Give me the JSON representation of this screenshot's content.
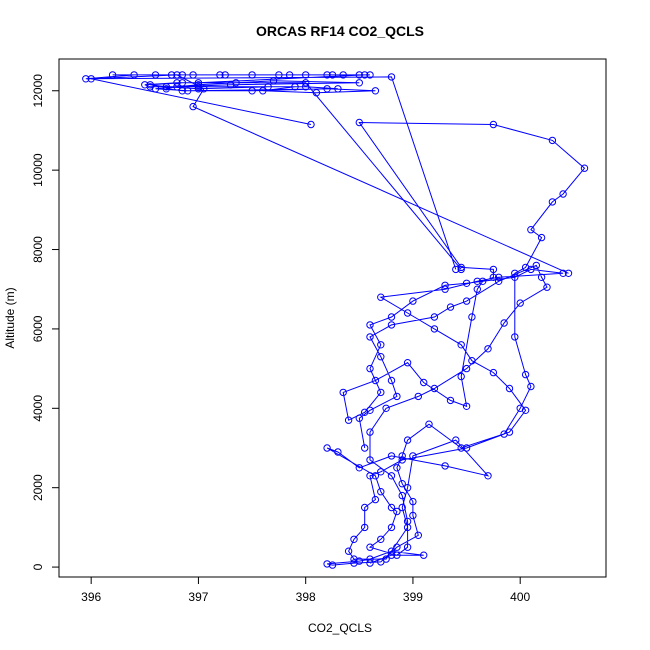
{
  "chart_data": {
    "type": "line",
    "title": "ORCAS RF14 CO2_QCLS",
    "xlabel": "CO2_QCLS",
    "ylabel": "Altitude (m)",
    "xlim": [
      395.7,
      400.8
    ],
    "ylim": [
      -250,
      12800
    ],
    "xticks": [
      396,
      397,
      398,
      399,
      400
    ],
    "yticks": [
      0,
      2000,
      4000,
      6000,
      8000,
      10000,
      12000
    ],
    "grid": false,
    "series_color": "#0000ff",
    "marker": "open-circle",
    "series": [
      {
        "values": [
          [
            398.6,
            100
          ],
          [
            398.8,
            300
          ],
          [
            399.1,
            300
          ],
          [
            398.8,
            400
          ],
          [
            398.6,
            200
          ],
          [
            398.5,
            150
          ],
          [
            398.2,
            80
          ],
          [
            398.25,
            50
          ],
          [
            398.45,
            100
          ],
          [
            398.7,
            130
          ],
          [
            398.85,
            500
          ],
          [
            399.05,
            800
          ],
          [
            399.0,
            1300
          ],
          [
            399.0,
            1650
          ],
          [
            398.9,
            2100
          ],
          [
            398.85,
            2500
          ],
          [
            398.9,
            2800
          ],
          [
            398.95,
            3200
          ],
          [
            399.15,
            3600
          ],
          [
            399.45,
            3000
          ],
          [
            399.9,
            3400
          ],
          [
            400.05,
            3950
          ],
          [
            399.9,
            4500
          ],
          [
            399.75,
            4900
          ],
          [
            399.55,
            5200
          ],
          [
            399.45,
            5600
          ],
          [
            399.2,
            6000
          ],
          [
            398.95,
            6400
          ],
          [
            398.7,
            6800
          ],
          [
            399.3,
            7000
          ],
          [
            399.6,
            7200
          ],
          [
            399.8,
            7300
          ],
          [
            400.4,
            7400
          ],
          [
            400.1,
            7500
          ],
          [
            399.95,
            7300
          ],
          [
            399.5,
            7150
          ],
          [
            399.3,
            7100
          ],
          [
            399.0,
            6700
          ],
          [
            398.8,
            6300
          ],
          [
            398.6,
            6100
          ],
          [
            398.7,
            5600
          ],
          [
            398.6,
            5000
          ],
          [
            398.7,
            4400
          ],
          [
            398.55,
            3900
          ],
          [
            398.4,
            3700
          ],
          [
            398.35,
            4400
          ],
          [
            398.65,
            4700
          ],
          [
            398.95,
            5150
          ],
          [
            399.1,
            4650
          ],
          [
            399.35,
            4200
          ],
          [
            399.5,
            4050
          ],
          [
            399.45,
            4800
          ],
          [
            399.55,
            6300
          ],
          [
            399.6,
            7000
          ],
          [
            399.65,
            7200
          ],
          [
            399.75,
            7300
          ],
          [
            399.75,
            7500
          ],
          [
            399.45,
            7550
          ],
          [
            398.5,
            11200
          ],
          [
            399.75,
            11150
          ],
          [
            400.3,
            10750
          ],
          [
            400.6,
            10050
          ],
          [
            400.4,
            9400
          ],
          [
            400.3,
            9200
          ],
          [
            400.1,
            8500
          ],
          [
            400.2,
            8300
          ],
          [
            400.05,
            7550
          ],
          [
            399.95,
            7400
          ],
          [
            399.95,
            5800
          ],
          [
            400.05,
            4850
          ],
          [
            400.1,
            4550
          ],
          [
            400.0,
            4000
          ],
          [
            399.85,
            3350
          ],
          [
            399.5,
            3000
          ],
          [
            398.9,
            2700
          ],
          [
            398.7,
            2400
          ],
          [
            398.6,
            2300
          ],
          [
            398.65,
            1700
          ],
          [
            398.55,
            1500
          ],
          [
            398.55,
            1000
          ],
          [
            398.45,
            700
          ],
          [
            398.4,
            400
          ],
          [
            398.45,
            200
          ],
          [
            398.75,
            200
          ],
          [
            398.95,
            1000
          ],
          [
            398.9,
            1500
          ],
          [
            398.95,
            2000
          ],
          [
            399.0,
            2800
          ],
          [
            399.4,
            3200
          ],
          [
            399.7,
            2300
          ],
          [
            399.3,
            2550
          ],
          [
            398.8,
            2800
          ],
          [
            398.5,
            2500
          ],
          [
            398.3,
            2900
          ],
          [
            398.2,
            3000
          ],
          [
            398.65,
            2300
          ],
          [
            398.7,
            1900
          ],
          [
            398.8,
            1500
          ],
          [
            398.85,
            1400
          ],
          [
            398.8,
            1000
          ],
          [
            398.7,
            700
          ],
          [
            398.6,
            500
          ],
          [
            398.85,
            300
          ],
          [
            398.95,
            500
          ],
          [
            398.95,
            1150
          ],
          [
            398.9,
            1800
          ],
          [
            398.8,
            2300
          ],
          [
            398.6,
            2700
          ],
          [
            398.6,
            3400
          ],
          [
            398.75,
            4000
          ],
          [
            399.05,
            4300
          ],
          [
            399.2,
            4500
          ],
          [
            399.5,
            5000
          ],
          [
            399.7,
            5500
          ],
          [
            399.85,
            6150
          ],
          [
            400.0,
            6650
          ],
          [
            400.25,
            7050
          ],
          [
            400.2,
            7300
          ],
          [
            400.15,
            7600
          ],
          [
            399.8,
            7200
          ],
          [
            399.5,
            6700
          ],
          [
            399.35,
            6550
          ],
          [
            399.2,
            6300
          ],
          [
            398.8,
            6100
          ],
          [
            398.6,
            5800
          ],
          [
            398.7,
            5300
          ],
          [
            398.8,
            4700
          ],
          [
            398.85,
            4300
          ],
          [
            398.6,
            3950
          ],
          [
            398.5,
            3750
          ],
          [
            398.55,
            3000
          ]
        ]
      },
      {
        "values": [
          [
            399.45,
            7500
          ],
          [
            398.0,
            12200
          ],
          [
            396.85,
            12200
          ],
          [
            396.55,
            12150
          ],
          [
            396.7,
            12100
          ],
          [
            397.0,
            12050
          ],
          [
            397.65,
            12100
          ],
          [
            398.0,
            12100
          ],
          [
            398.3,
            12050
          ],
          [
            396.9,
            12000
          ],
          [
            396.6,
            12050
          ],
          [
            397.0,
            12150
          ],
          [
            397.35,
            12200
          ],
          [
            397.7,
            12250
          ],
          [
            398.5,
            12200
          ],
          [
            397.3,
            12150
          ],
          [
            396.8,
            12100
          ],
          [
            396.7,
            12050
          ],
          [
            396.85,
            12000
          ],
          [
            397.5,
            12000
          ],
          [
            398.2,
            12050
          ],
          [
            398.65,
            12000
          ],
          [
            398.1,
            11950
          ],
          [
            397.6,
            12000
          ],
          [
            397.9,
            12100
          ],
          [
            397.0,
            12100
          ],
          [
            396.55,
            12100
          ],
          [
            396.5,
            12150
          ],
          [
            396.8,
            12200
          ],
          [
            397.0,
            12200
          ],
          [
            398.55,
            12400
          ],
          [
            396.85,
            12400
          ],
          [
            396.2,
            12400
          ],
          [
            397.25,
            12400
          ],
          [
            398.6,
            12400
          ],
          [
            396.75,
            12400
          ],
          [
            397.2,
            12400
          ],
          [
            398.0,
            12400
          ],
          [
            398.25,
            12400
          ],
          [
            396.6,
            12400
          ],
          [
            397.5,
            12400
          ],
          [
            397.85,
            12400
          ],
          [
            398.35,
            12400
          ],
          [
            396.95,
            12400
          ],
          [
            397.75,
            12400
          ],
          [
            398.2,
            12400
          ],
          [
            398.5,
            12400
          ],
          [
            396.4,
            12400
          ],
          [
            395.95,
            12300
          ],
          [
            398.8,
            12350
          ],
          [
            399.4,
            7500
          ]
        ]
      },
      {
        "values": [
          [
            398.05,
            11150
          ],
          [
            396.0,
            12300
          ],
          [
            396.8,
            12400
          ],
          [
            397.05,
            12050
          ],
          [
            396.95,
            11600
          ],
          [
            400.45,
            7400
          ]
        ]
      }
    ]
  }
}
